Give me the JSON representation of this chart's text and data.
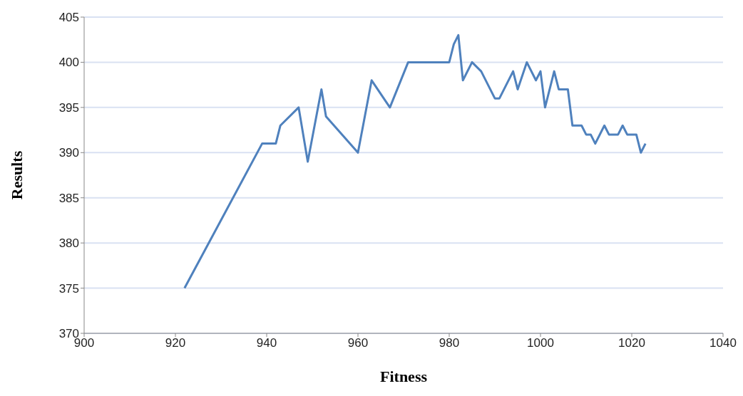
{
  "chart_data": {
    "type": "line",
    "xlabel": "Fitness",
    "ylabel": "Results",
    "x": [
      922,
      939,
      942,
      943,
      947,
      949,
      952,
      953,
      960,
      963,
      967,
      971,
      980,
      981,
      982,
      983,
      985,
      987,
      990,
      991,
      994,
      995,
      997,
      999,
      1000,
      1001,
      1003,
      1004,
      1006,
      1007,
      1009,
      1010,
      1011,
      1012,
      1014,
      1015,
      1017,
      1018,
      1019,
      1021,
      1022,
      1023
    ],
    "series": [
      {
        "color": "#4f81bd",
        "values": [
          375,
          391,
          391,
          393,
          395,
          389,
          397,
          394,
          390,
          398,
          395,
          400,
          400,
          402,
          403,
          398,
          400,
          399,
          396,
          396,
          399,
          397,
          400,
          398,
          399,
          395,
          399,
          397,
          397,
          393,
          393,
          392,
          392,
          391,
          393,
          392,
          392,
          393,
          392,
          392,
          390,
          391
        ]
      }
    ],
    "xlim": [
      900,
      1040
    ],
    "xticks": [
      900,
      920,
      940,
      960,
      980,
      1000,
      1020,
      1040
    ],
    "ylim": [
      370,
      405
    ],
    "yticks": [
      370,
      375,
      380,
      385,
      390,
      395,
      400,
      405
    ],
    "grid": "y",
    "marker": "none",
    "line_style": "solid",
    "legend": false
  }
}
